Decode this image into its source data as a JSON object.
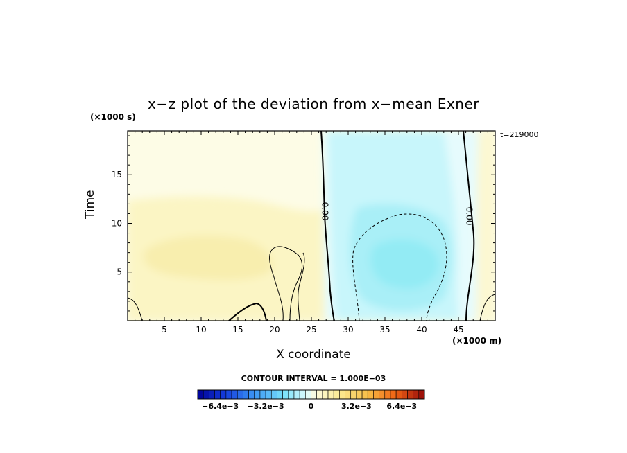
{
  "chart_data": {
    "type": "heatmap",
    "title": "x−z plot of the deviation from x−mean Exner",
    "xlabel": "X coordinate",
    "ylabel": "Time",
    "x_unit": "(×1000 m)",
    "y_unit": "(×1000 s)",
    "time_label": "t=219000",
    "contour_interval": "CONTOUR INTERVAL = 1.000E−03",
    "xlim": [
      0,
      50
    ],
    "ylim": [
      0,
      19.5
    ],
    "x_ticks": [
      5,
      10,
      15,
      20,
      25,
      30,
      35,
      40,
      45
    ],
    "y_ticks": [
      5,
      10,
      15
    ],
    "zero_contour_labels": [
      "0.00",
      "0.00"
    ],
    "colorbar": {
      "min": -0.008,
      "max": 0.008,
      "tick_labels": [
        "−6.4e−3",
        "−3.2e−3",
        "0",
        "3.2e−3",
        "6.4e−3"
      ],
      "tick_values": [
        -0.0064,
        -0.0032,
        0,
        0.0032,
        0.0064
      ]
    },
    "field_regions": [
      {
        "region": "x 0–27",
        "level": "positive",
        "approx_value": 0.0005
      },
      {
        "region": "x 27–45",
        "level": "negative",
        "approx_value": -0.0015
      },
      {
        "region": "x 33–42, t 3–9",
        "level": "negative minimum",
        "approx_value": -0.003
      },
      {
        "region": "x 45–50",
        "level": "positive",
        "approx_value": 0.0003
      }
    ]
  }
}
